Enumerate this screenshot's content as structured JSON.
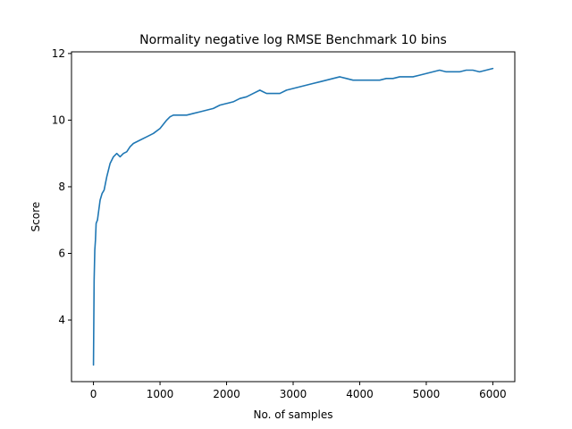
{
  "chart_data": {
    "type": "line",
    "title": "Normality negative log RMSE Benchmark 10 bins",
    "xlabel": "No. of samples",
    "ylabel": "Score",
    "xlim": [
      -330,
      6330
    ],
    "ylim": [
      2.15,
      12.05
    ],
    "x_ticks": [
      0,
      1000,
      2000,
      3000,
      4000,
      5000,
      6000
    ],
    "y_ticks": [
      4,
      6,
      8,
      10,
      12
    ],
    "grid": false,
    "legend": "none",
    "colors": {
      "series": "#1f77b4",
      "axis": "#000000",
      "background": "#ffffff"
    },
    "series": [
      {
        "x": [
          0,
          10,
          20,
          30,
          40,
          60,
          80,
          100,
          130,
          160,
          200,
          250,
          300,
          350,
          400,
          450,
          500,
          550,
          600,
          650,
          700,
          800,
          900,
          1000,
          1100,
          1150,
          1200,
          1300,
          1400,
          1500,
          1600,
          1700,
          1800,
          1900,
          2000,
          2100,
          2200,
          2300,
          2400,
          2500,
          2550,
          2600,
          2700,
          2800,
          2900,
          3000,
          3100,
          3200,
          3300,
          3400,
          3500,
          3600,
          3700,
          3800,
          3900,
          4000,
          4100,
          4200,
          4300,
          4400,
          4500,
          4600,
          4700,
          4800,
          4900,
          5000,
          5100,
          5200,
          5300,
          5400,
          5500,
          5600,
          5700,
          5800,
          5900,
          6000
        ],
        "y": [
          2.65,
          5.2,
          6.1,
          6.4,
          6.9,
          7.0,
          7.3,
          7.6,
          7.8,
          7.9,
          8.3,
          8.7,
          8.9,
          9.0,
          8.9,
          9.0,
          9.05,
          9.2,
          9.3,
          9.35,
          9.4,
          9.5,
          9.6,
          9.75,
          10.0,
          10.1,
          10.15,
          10.15,
          10.15,
          10.2,
          10.25,
          10.3,
          10.35,
          10.45,
          10.5,
          10.55,
          10.65,
          10.7,
          10.8,
          10.9,
          10.85,
          10.8,
          10.8,
          10.8,
          10.9,
          10.95,
          11.0,
          11.05,
          11.1,
          11.15,
          11.2,
          11.25,
          11.3,
          11.25,
          11.2,
          11.2,
          11.2,
          11.2,
          11.2,
          11.25,
          11.25,
          11.3,
          11.3,
          11.3,
          11.35,
          11.4,
          11.45,
          11.5,
          11.45,
          11.45,
          11.45,
          11.5,
          11.5,
          11.45,
          11.5,
          11.55
        ]
      }
    ]
  }
}
